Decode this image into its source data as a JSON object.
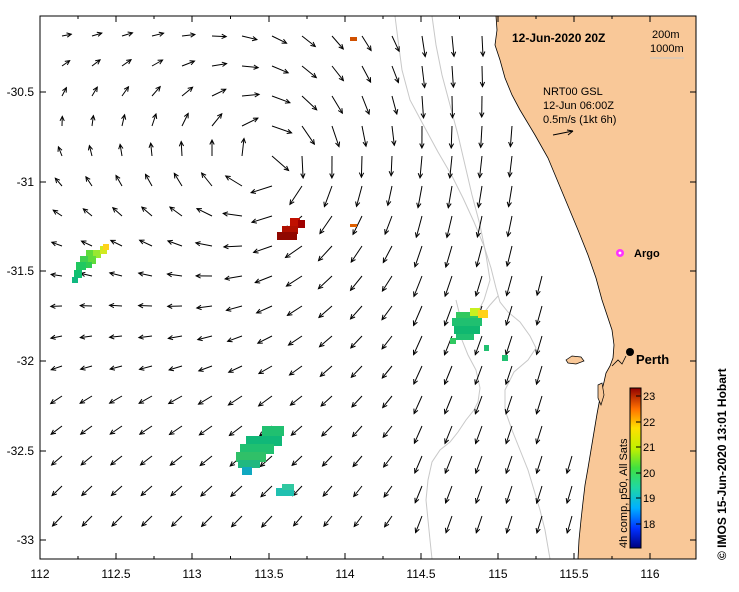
{
  "map": {
    "title": "12-Jun-2020 20Z",
    "depth_legend": [
      "200m",
      "1000m"
    ],
    "vector_legend": {
      "line1": "NRT00 GSL",
      "line2": "12-Jun 06:00Z",
      "line3": "0.5m/s (1kt 6h)"
    },
    "places": {
      "argo": "Argo",
      "perth": "Perth"
    },
    "x_ticks": [
      "112",
      "112.5",
      "113",
      "113.5",
      "114",
      "114.5",
      "115",
      "115.5",
      "116"
    ],
    "y_ticks": [
      "-30.5",
      "-31",
      "-31.5",
      "-32",
      "-32.5",
      "-33"
    ],
    "colorbar": {
      "label": "4h comp, p50, All Sats",
      "ticks": [
        "18",
        "19",
        "20",
        "21",
        "22",
        "23"
      ]
    },
    "credit": "© IMOS 15-Jun-2020 13:01 Hobart",
    "colors": {
      "land": "#f9c898",
      "ocean": "#ffffff",
      "isobath": "#c8c8c8",
      "arrow": "#000000",
      "argo_marker": "#ff33ff"
    }
  }
}
